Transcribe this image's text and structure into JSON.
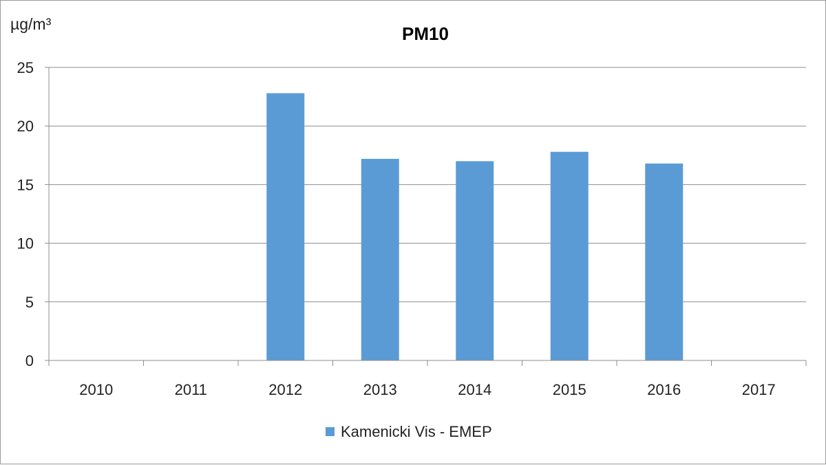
{
  "chart_data": {
    "type": "bar",
    "title": "PM10",
    "ylabel": "µg/m³",
    "xlabel": "",
    "categories": [
      "2010",
      "2011",
      "2012",
      "2013",
      "2014",
      "2015",
      "2016",
      "2017"
    ],
    "series": [
      {
        "name": "Kamenicki Vis - EMEP",
        "color": "#5b9bd5",
        "values": [
          null,
          null,
          22.8,
          17.2,
          17.0,
          17.8,
          16.8,
          null
        ]
      }
    ],
    "ylim": [
      0,
      25
    ],
    "yticks": [
      0,
      5,
      10,
      15,
      20,
      25
    ],
    "grid": true,
    "legend": "bottom-center"
  }
}
